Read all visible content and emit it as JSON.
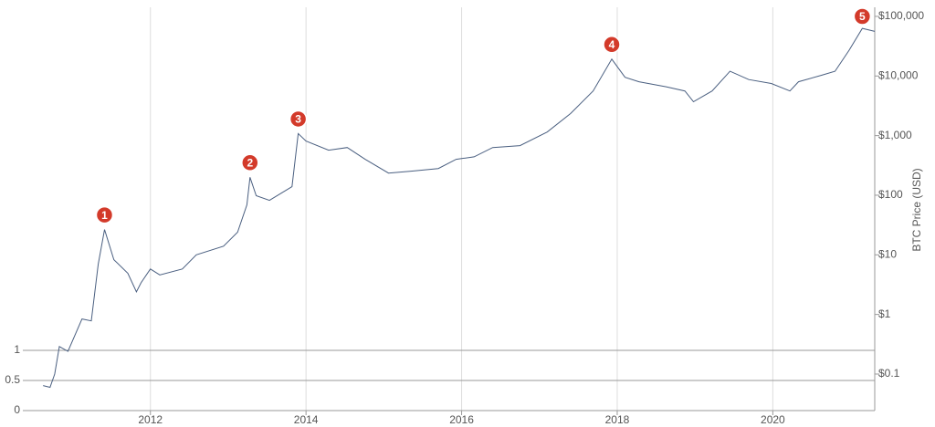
{
  "chart_data": {
    "type": "line",
    "y2label": "BTC Price (USD)",
    "xlim": [
      2010.36,
      2021.31
    ],
    "xticks": [
      2012,
      2014,
      2016,
      2018,
      2020
    ],
    "ylim": [
      0,
      6.7
    ],
    "yticks": [
      0,
      0.5,
      1
    ],
    "y2lim": [
      0.0244,
      142000
    ],
    "y2log": true,
    "y2ticks": [
      {
        "value": 0.1,
        "label": "$0.1"
      },
      {
        "value": 1,
        "label": "$1"
      },
      {
        "value": 10,
        "label": "$10"
      },
      {
        "value": 100,
        "label": "$100"
      },
      {
        "value": 1000,
        "label": "$1,000"
      },
      {
        "value": 10000,
        "label": "$10,000"
      },
      {
        "value": 100000,
        "label": "$100,000"
      }
    ],
    "grid": true,
    "series": [
      {
        "color": "#4a5f80",
        "axis": "y2",
        "x": [
          2010.62,
          2010.71,
          2010.77,
          2010.83,
          2010.94,
          2011.12,
          2011.24,
          2011.33,
          2011.41,
          2011.53,
          2011.71,
          2011.82,
          2011.88,
          2012.0,
          2012.12,
          2012.41,
          2012.59,
          2012.94,
          2013.12,
          2013.24,
          2013.28,
          2013.36,
          2013.53,
          2013.82,
          2013.9,
          2014.0,
          2014.29,
          2014.53,
          2014.76,
          2015.06,
          2015.35,
          2015.7,
          2015.93,
          2016.16,
          2016.4,
          2016.75,
          2017.1,
          2017.4,
          2017.69,
          2017.93,
          2018.1,
          2018.28,
          2018.63,
          2018.87,
          2018.98,
          2019.22,
          2019.45,
          2019.69,
          2019.98,
          2020.22,
          2020.33,
          2020.63,
          2020.8,
          2020.98,
          2021.15,
          2021.31
        ],
        "values": [
          0.064,
          0.06,
          0.1,
          0.29,
          0.24,
          0.84,
          0.78,
          7,
          26.5,
          8.3,
          4.9,
          2.4,
          3.4,
          5.8,
          4.6,
          5.8,
          10,
          14,
          24,
          69,
          200,
          98,
          82,
          139,
          1080,
          810,
          570,
          630,
          400,
          235,
          253,
          280,
          400,
          440,
          630,
          680,
          1150,
          2340,
          5600,
          19200,
          9500,
          8000,
          6600,
          5600,
          3700,
          5600,
          12000,
          8700,
          7500,
          5600,
          8000,
          10300,
          12000,
          27000,
          63000,
          56000
        ]
      }
    ],
    "annotations": [
      {
        "label": "1",
        "x": 2011.41,
        "value": 26.5
      },
      {
        "label": "2",
        "x": 2013.28,
        "value": 200
      },
      {
        "label": "3",
        "x": 2013.9,
        "value": 1080
      },
      {
        "label": "4",
        "x": 2017.93,
        "value": 19200
      },
      {
        "label": "5",
        "x": 2021.15,
        "value": 63000
      }
    ]
  }
}
